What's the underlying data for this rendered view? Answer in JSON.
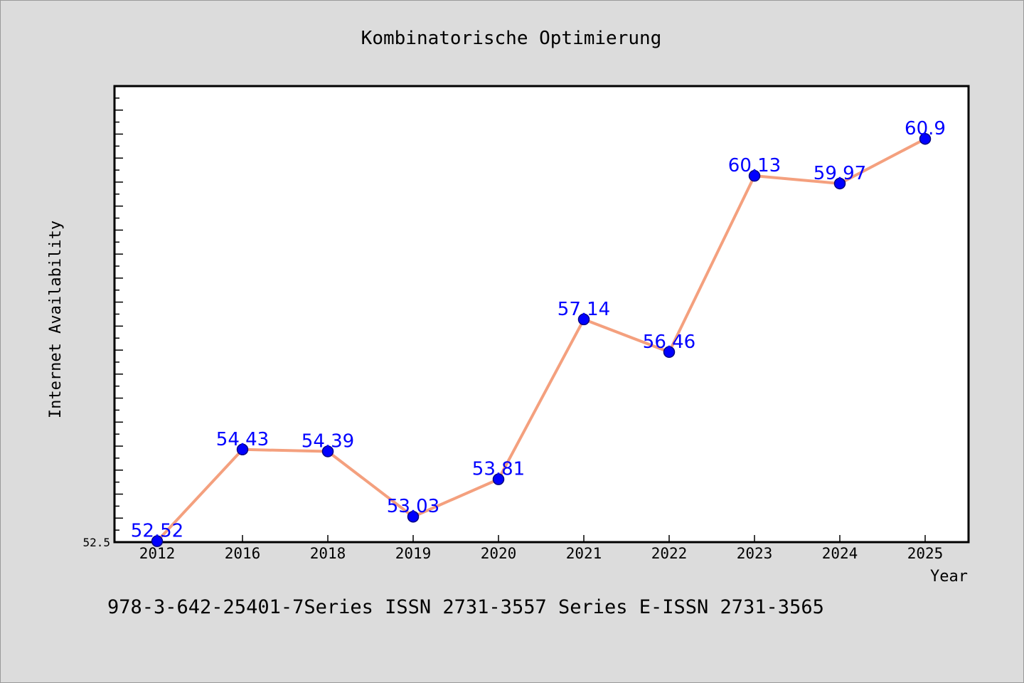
{
  "chart_data": {
    "type": "line",
    "title": "Kombinatorische Optimierung",
    "xlabel": "Year",
    "ylabel": "Internet Availability",
    "categories": [
      "2012",
      "2016",
      "2018",
      "2019",
      "2020",
      "2021",
      "2022",
      "2023",
      "2024",
      "2025"
    ],
    "series": [
      {
        "values": [
          52.52,
          54.43,
          54.39,
          53.03,
          53.81,
          57.14,
          56.46,
          60.13,
          59.97,
          60.9
        ],
        "labels": [
          "52.52",
          "54.43",
          "54.39",
          "53.03",
          "53.81",
          "57.14",
          "56.46",
          "60.13",
          "59.97",
          "60.9"
        ]
      }
    ],
    "ylim": [
      52.5,
      62
    ],
    "y_tick_labels": [
      "52.5"
    ],
    "grid": false,
    "legend": "none",
    "colors": {
      "line": "#f4a07e",
      "marker": "#0000ff",
      "marker_edge": "#000080",
      "data_label": "#0000ff",
      "plot_bg": "#ffffff",
      "figure_bg": "#dcdcdc"
    }
  },
  "footer": "978-3-642-25401-7Series ISSN 2731-3557 Series E-ISSN 2731-3565"
}
